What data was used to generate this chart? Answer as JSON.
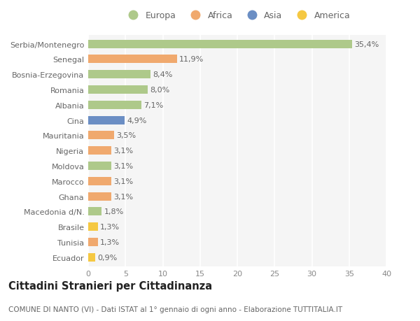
{
  "countries": [
    "Serbia/Montenegro",
    "Senegal",
    "Bosnia-Erzegovina",
    "Romania",
    "Albania",
    "Cina",
    "Mauritania",
    "Nigeria",
    "Moldova",
    "Marocco",
    "Ghana",
    "Macedonia d/N.",
    "Brasile",
    "Tunisia",
    "Ecuador"
  ],
  "values": [
    35.4,
    11.9,
    8.4,
    8.0,
    7.1,
    4.9,
    3.5,
    3.1,
    3.1,
    3.1,
    3.1,
    1.8,
    1.3,
    1.3,
    0.9
  ],
  "labels": [
    "35,4%",
    "11,9%",
    "8,4%",
    "8,0%",
    "7,1%",
    "4,9%",
    "3,5%",
    "3,1%",
    "3,1%",
    "3,1%",
    "3,1%",
    "1,8%",
    "1,3%",
    "1,3%",
    "0,9%"
  ],
  "continents": [
    "Europa",
    "Africa",
    "Europa",
    "Europa",
    "Europa",
    "Asia",
    "Africa",
    "Africa",
    "Europa",
    "Africa",
    "Africa",
    "Europa",
    "America",
    "Africa",
    "America"
  ],
  "colors": {
    "Europa": "#aec98a",
    "Africa": "#f0a96e",
    "Asia": "#6b8ec4",
    "America": "#f5c842"
  },
  "legend_order": [
    "Europa",
    "Africa",
    "Asia",
    "America"
  ],
  "title1": "Cittadini Stranieri per Cittadinanza",
  "title2": "COMUNE DI NANTO (VI) - Dati ISTAT al 1° gennaio di ogni anno - Elaborazione TUTTITALIA.IT",
  "xlim": [
    0,
    40
  ],
  "xticks": [
    0,
    5,
    10,
    15,
    20,
    25,
    30,
    35,
    40
  ],
  "bg_color": "#ffffff",
  "plot_bg_color": "#f5f5f5",
  "grid_color": "#ffffff",
  "bar_height": 0.55,
  "label_fontsize": 8,
  "tick_fontsize": 8,
  "title1_fontsize": 10.5,
  "title2_fontsize": 7.5,
  "legend_fontsize": 9
}
